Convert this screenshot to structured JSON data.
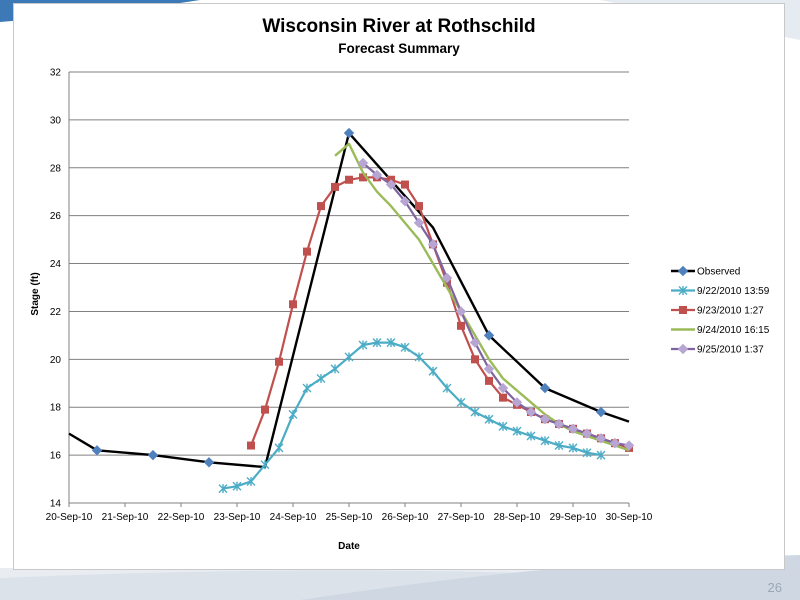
{
  "page": {
    "number": "26"
  },
  "colors": {
    "observed": "#000000",
    "observed_marker": "#4f81bd",
    "f1": "#4bacc6",
    "f2": "#c0504d",
    "f3": "#9bbb59",
    "f4": "#8064a2",
    "f4_marker": "#b7a6d3",
    "grid": "#808080"
  },
  "chart_data": {
    "type": "line",
    "title": "Wisconsin River at Rothschild",
    "subtitle": "Forecast Summary",
    "xlabel": "Date",
    "ylabel": "Stage (ft)",
    "xlim": [
      "20-Sep-10",
      "30-Sep-10"
    ],
    "ylim": [
      14,
      32
    ],
    "yticks": [
      "14",
      "16",
      "18",
      "20",
      "22",
      "24",
      "26",
      "28",
      "30",
      "32"
    ],
    "xticks": [
      "20-Sep-10",
      "21-Sep-10",
      "22-Sep-10",
      "23-Sep-10",
      "24-Sep-10",
      "25-Sep-10",
      "26-Sep-10",
      "27-Sep-10",
      "28-Sep-10",
      "29-Sep-10",
      "30-Sep-10"
    ],
    "grid": true,
    "legend": "right",
    "series": [
      {
        "name": "Observed",
        "color": "#000000",
        "marker": "diamond",
        "x": [
          "2010-09-20 00:00",
          "2010-09-20 12:00",
          "2010-09-21 12:00",
          "2010-09-22 12:00",
          "2010-09-23 12:00",
          "2010-09-25 00:00",
          "2010-09-26 12:00",
          "2010-09-27 12:00",
          "2010-09-28 12:00",
          "2010-09-29 12:00",
          "2010-09-30 00:00"
        ],
        "y": [
          16.9,
          16.2,
          16.0,
          15.7,
          15.5,
          29.45,
          25.5,
          21.0,
          18.8,
          17.8,
          17.4
        ],
        "markers": [
          false,
          true,
          true,
          true,
          false,
          true,
          false,
          true,
          true,
          true,
          false
        ]
      },
      {
        "name": "9/22/2010 13:59",
        "color": "#4bacc6",
        "marker": "star",
        "x": [
          "2010-09-22 18:00",
          "2010-09-23 00:00",
          "2010-09-23 06:00",
          "2010-09-23 12:00",
          "2010-09-23 18:00",
          "2010-09-24 00:00",
          "2010-09-24 06:00",
          "2010-09-24 12:00",
          "2010-09-24 18:00",
          "2010-09-25 00:00",
          "2010-09-25 06:00",
          "2010-09-25 12:00",
          "2010-09-25 18:00",
          "2010-09-26 00:00",
          "2010-09-26 06:00",
          "2010-09-26 12:00",
          "2010-09-26 18:00",
          "2010-09-27 00:00",
          "2010-09-27 06:00",
          "2010-09-27 12:00",
          "2010-09-27 18:00",
          "2010-09-28 00:00",
          "2010-09-28 06:00",
          "2010-09-28 12:00",
          "2010-09-28 18:00",
          "2010-09-29 00:00",
          "2010-09-29 06:00",
          "2010-09-29 12:00"
        ],
        "y": [
          14.6,
          14.7,
          14.9,
          15.6,
          16.3,
          17.7,
          18.8,
          19.2,
          19.6,
          20.1,
          20.6,
          20.7,
          20.7,
          20.5,
          20.1,
          19.5,
          18.8,
          18.2,
          17.8,
          17.5,
          17.2,
          17.0,
          16.8,
          16.6,
          16.4,
          16.3,
          16.1,
          16.0
        ]
      },
      {
        "name": "9/23/2010 1:27",
        "color": "#c0504d",
        "marker": "square",
        "x": [
          "2010-09-23 06:00",
          "2010-09-23 12:00",
          "2010-09-23 18:00",
          "2010-09-24 00:00",
          "2010-09-24 06:00",
          "2010-09-24 12:00",
          "2010-09-24 18:00",
          "2010-09-25 00:00",
          "2010-09-25 06:00",
          "2010-09-25 12:00",
          "2010-09-25 18:00",
          "2010-09-26 00:00",
          "2010-09-26 06:00",
          "2010-09-26 12:00",
          "2010-09-26 18:00",
          "2010-09-27 00:00",
          "2010-09-27 06:00",
          "2010-09-27 12:00",
          "2010-09-27 18:00",
          "2010-09-28 00:00",
          "2010-09-28 06:00",
          "2010-09-28 12:00",
          "2010-09-28 18:00",
          "2010-09-29 00:00",
          "2010-09-29 06:00",
          "2010-09-29 12:00",
          "2010-09-29 18:00",
          "2010-09-30 00:00"
        ],
        "y": [
          16.4,
          17.9,
          19.9,
          22.3,
          24.5,
          26.4,
          27.2,
          27.5,
          27.6,
          27.6,
          27.5,
          27.3,
          26.4,
          24.8,
          23.2,
          21.4,
          20.0,
          19.1,
          18.4,
          18.1,
          17.8,
          17.5,
          17.3,
          17.1,
          16.9,
          16.7,
          16.5,
          16.3
        ]
      },
      {
        "name": "9/24/2010 16:15",
        "color": "#9bbb59",
        "marker": "none",
        "x": [
          "2010-09-24 18:00",
          "2010-09-25 00:00",
          "2010-09-25 06:00",
          "2010-09-25 12:00",
          "2010-09-25 18:00",
          "2010-09-26 00:00",
          "2010-09-26 06:00",
          "2010-09-26 12:00",
          "2010-09-26 18:00",
          "2010-09-27 00:00",
          "2010-09-27 06:00",
          "2010-09-27 12:00",
          "2010-09-27 18:00",
          "2010-09-28 00:00",
          "2010-09-28 06:00",
          "2010-09-28 12:00",
          "2010-09-28 18:00",
          "2010-09-29 00:00",
          "2010-09-29 06:00",
          "2010-09-29 12:00",
          "2010-09-29 18:00",
          "2010-09-30 00:00"
        ],
        "y": [
          28.5,
          29.0,
          27.8,
          27.0,
          26.4,
          25.7,
          25.0,
          24.0,
          23.0,
          22.0,
          21.0,
          20.0,
          19.2,
          18.7,
          18.2,
          17.7,
          17.3,
          17.0,
          16.8,
          16.6,
          16.4,
          16.2
        ]
      },
      {
        "name": "9/25/2010 1:37",
        "color": "#8064a2",
        "marker": "diamond",
        "x": [
          "2010-09-25 06:00",
          "2010-09-25 12:00",
          "2010-09-25 18:00",
          "2010-09-26 00:00",
          "2010-09-26 06:00",
          "2010-09-26 12:00",
          "2010-09-26 18:00",
          "2010-09-27 00:00",
          "2010-09-27 06:00",
          "2010-09-27 12:00",
          "2010-09-27 18:00",
          "2010-09-28 00:00",
          "2010-09-28 06:00",
          "2010-09-28 12:00",
          "2010-09-28 18:00",
          "2010-09-29 00:00",
          "2010-09-29 06:00",
          "2010-09-29 12:00",
          "2010-09-29 18:00",
          "2010-09-30 00:00"
        ],
        "y": [
          28.2,
          27.7,
          27.3,
          26.6,
          25.7,
          24.8,
          23.4,
          22.0,
          20.7,
          19.6,
          18.8,
          18.2,
          17.8,
          17.5,
          17.3,
          17.1,
          16.9,
          16.7,
          16.5,
          16.4
        ]
      }
    ]
  }
}
